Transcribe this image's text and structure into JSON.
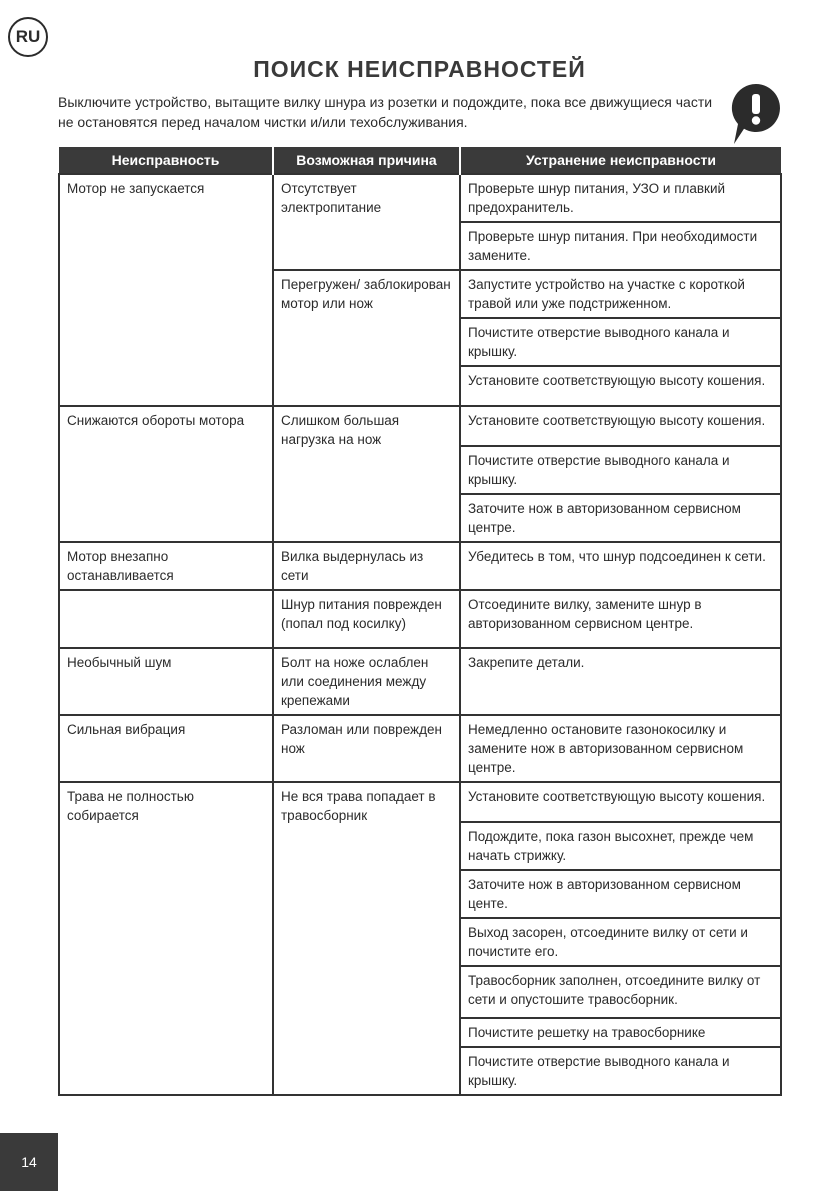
{
  "lang_badge": "RU",
  "title": "ПОИСК НЕИСПРАВНОСТЕЙ",
  "intro": "Выключите устройство, вытащите вилку шнура из розетки и подождите, пока все движущиеся части не остановятся перед началом чистки и/или техобслуживания.",
  "warning_icon": "exclamation-speech-bubble-icon",
  "table": {
    "headers": [
      "Неисправность",
      "Возможная причина",
      "Устранение неисправности"
    ],
    "faults": [
      {
        "fault": "Мотор не запускается",
        "causes": [
          {
            "cause": "Отсутствует электропитание",
            "remedies": [
              "Проверьте шнур питания, УЗО и плавкий предохранитель.",
              "Проверьте шнур питания. При необходимости замените."
            ]
          },
          {
            "cause": "Перегружен/ заблокирован мотор или нож",
            "remedies": [
              "Запустите устройство на участке с короткой травой или уже подстриженном.",
              "Почистите отверстие выводного канала и крышку.",
              "Установите соответствующую высоту кошения."
            ]
          }
        ]
      },
      {
        "fault": "Снижаются обороты мотора",
        "causes": [
          {
            "cause": "Слишком большая нагрузка на нож",
            "remedies": [
              "Установите соответствующую высоту кошения.",
              "Почистите отверстие выводного канала и крышку.",
              "Заточите нож в авторизованном сервисном центре."
            ]
          }
        ]
      },
      {
        "fault": "Мотор внезапно останавливается",
        "causes": [
          {
            "cause": "Вилка выдернулась из сети",
            "remedies": [
              "Убедитесь в том, что шнур подсоединен к сети."
            ]
          }
        ]
      },
      {
        "fault": "",
        "causes": [
          {
            "cause": "Шнур питания поврежден (попал под косилку)",
            "remedies": [
              "Отсоедините вилку, замените шнур в авторизованном сервисном центре."
            ]
          }
        ]
      },
      {
        "fault": "Необычный шум",
        "causes": [
          {
            "cause": "Болт на ноже ослаблен или соединения между крепежами",
            "remedies": [
              "Закрепите детали."
            ]
          }
        ]
      },
      {
        "fault": "Сильная вибрация",
        "causes": [
          {
            "cause": "Разломан или поврежден нож",
            "remedies": [
              "Немедленно остановите газонокосилку и замените нож в авторизованном сервисном центре."
            ]
          }
        ]
      },
      {
        "fault": "Трава не полностью собирается",
        "causes": [
          {
            "cause": "Не вся трава попадает в травосборник",
            "remedies": [
              "Установите соответствующую высоту кошения.",
              "Подождите, пока газон высохнет, прежде чем начать стрижку.",
              "Заточите нож в авторизованном сервисном центе.",
              "Выход засорен, отсоедините вилку от сети и почистите его.",
              "Травосборник заполнен, отсоедините вилку от сети и опустошите травосборник.",
              "Почистите решетку на травосборнике",
              "Почистите отверстие выводного канала и крышку."
            ]
          }
        ]
      }
    ]
  },
  "page_number": "14"
}
